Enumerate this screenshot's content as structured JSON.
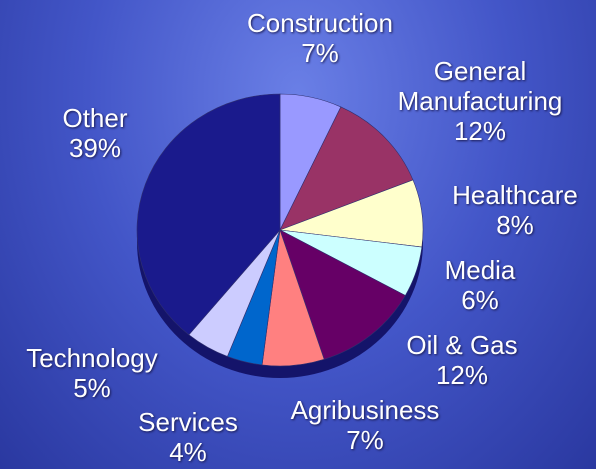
{
  "chart_data": {
    "type": "pie",
    "categories": [
      "Construction",
      "General Manufacturing",
      "Healthcare",
      "Media",
      "Oil & Gas",
      "Agribusiness",
      "Services",
      "Technology",
      "Other"
    ],
    "values": [
      7,
      12,
      8,
      6,
      12,
      7,
      4,
      5,
      39
    ],
    "value_labels": [
      "7%",
      "12%",
      "8%",
      "6%",
      "12%",
      "7%",
      "4%",
      "5%",
      "39%"
    ],
    "colors": [
      "#9999ff",
      "#993366",
      "#ffffcc",
      "#ccffff",
      "#660066",
      "#ff8080",
      "#0066cc",
      "#ccccff",
      "#1a1a8c"
    ]
  }
}
